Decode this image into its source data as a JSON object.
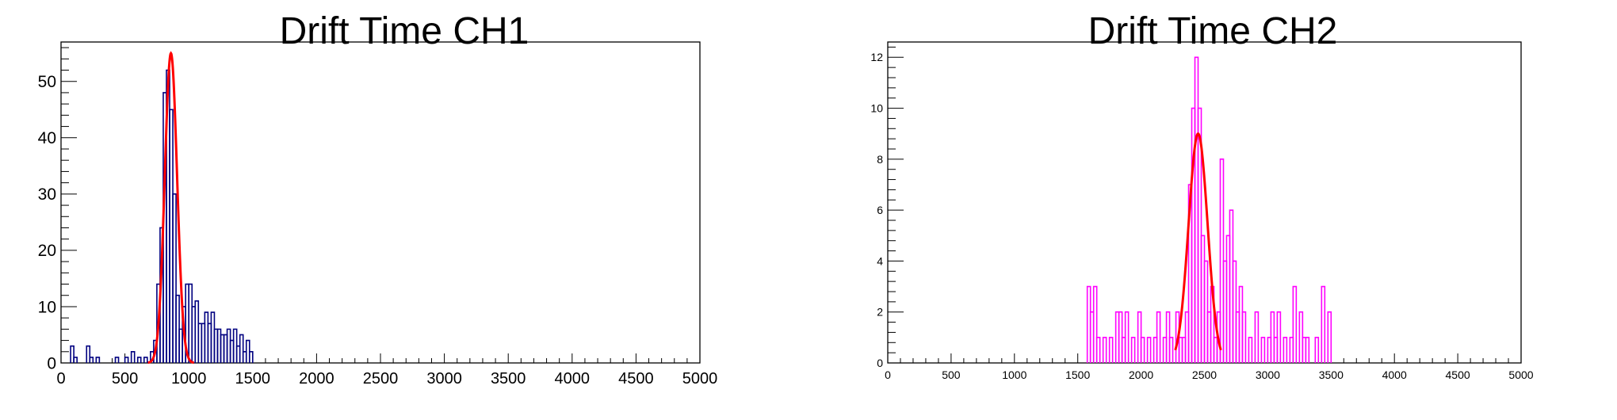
{
  "chart_data": [
    {
      "type": "histogram",
      "title": "Drift Time CH1",
      "xlabel": "",
      "ylabel": "",
      "xlim": [
        0,
        5000
      ],
      "ylim": [
        0,
        57
      ],
      "xticks": [
        0,
        500,
        1000,
        1500,
        2000,
        2500,
        3000,
        3500,
        4000,
        4500,
        5000
      ],
      "yticks": [
        0,
        10,
        20,
        30,
        40,
        50
      ],
      "bin_width": 25,
      "histogram_color": "#000080",
      "fit_color": "#ff0000",
      "bins": [
        {
          "x": 75,
          "y": 3
        },
        {
          "x": 100,
          "y": 1
        },
        {
          "x": 200,
          "y": 3
        },
        {
          "x": 225,
          "y": 1
        },
        {
          "x": 275,
          "y": 1
        },
        {
          "x": 425,
          "y": 1
        },
        {
          "x": 500,
          "y": 1
        },
        {
          "x": 550,
          "y": 2
        },
        {
          "x": 600,
          "y": 1
        },
        {
          "x": 650,
          "y": 1
        },
        {
          "x": 700,
          "y": 2
        },
        {
          "x": 725,
          "y": 4
        },
        {
          "x": 750,
          "y": 14
        },
        {
          "x": 775,
          "y": 24
        },
        {
          "x": 800,
          "y": 48
        },
        {
          "x": 825,
          "y": 52
        },
        {
          "x": 850,
          "y": 45
        },
        {
          "x": 875,
          "y": 30
        },
        {
          "x": 900,
          "y": 12
        },
        {
          "x": 925,
          "y": 6
        },
        {
          "x": 950,
          "y": 10
        },
        {
          "x": 975,
          "y": 14
        },
        {
          "x": 1000,
          "y": 14
        },
        {
          "x": 1025,
          "y": 10
        },
        {
          "x": 1050,
          "y": 11
        },
        {
          "x": 1075,
          "y": 7
        },
        {
          "x": 1100,
          "y": 7
        },
        {
          "x": 1125,
          "y": 9
        },
        {
          "x": 1150,
          "y": 7
        },
        {
          "x": 1175,
          "y": 9
        },
        {
          "x": 1200,
          "y": 6
        },
        {
          "x": 1225,
          "y": 6
        },
        {
          "x": 1250,
          "y": 5
        },
        {
          "x": 1275,
          "y": 5
        },
        {
          "x": 1300,
          "y": 6
        },
        {
          "x": 1325,
          "y": 4
        },
        {
          "x": 1350,
          "y": 6
        },
        {
          "x": 1375,
          "y": 3
        },
        {
          "x": 1400,
          "y": 5
        },
        {
          "x": 1425,
          "y": 2
        },
        {
          "x": 1450,
          "y": 4
        },
        {
          "x": 1475,
          "y": 2
        }
      ],
      "fit": {
        "type": "gaussian",
        "amplitude": 55,
        "mean": 860,
        "sigma": 48,
        "range": [
          680,
          1040
        ]
      }
    },
    {
      "type": "histogram",
      "title": "Drift Time CH2",
      "xlabel": "",
      "ylabel": "",
      "xlim": [
        0,
        5000
      ],
      "ylim": [
        0,
        12.6
      ],
      "xticks": [
        0,
        500,
        1000,
        1500,
        2000,
        2500,
        3000,
        3500,
        4000,
        4500,
        5000
      ],
      "yticks": [
        0,
        2,
        4,
        6,
        8,
        10,
        12
      ],
      "bin_width": 25,
      "histogram_color": "#ff00ff",
      "fit_color": "#ff0000",
      "bins": [
        {
          "x": 1575,
          "y": 3
        },
        {
          "x": 1600,
          "y": 2
        },
        {
          "x": 1625,
          "y": 3
        },
        {
          "x": 1650,
          "y": 1
        },
        {
          "x": 1700,
          "y": 1
        },
        {
          "x": 1750,
          "y": 1
        },
        {
          "x": 1800,
          "y": 2
        },
        {
          "x": 1825,
          "y": 2
        },
        {
          "x": 1850,
          "y": 1
        },
        {
          "x": 1875,
          "y": 2
        },
        {
          "x": 1925,
          "y": 1
        },
        {
          "x": 1975,
          "y": 2
        },
        {
          "x": 2000,
          "y": 1
        },
        {
          "x": 2050,
          "y": 1
        },
        {
          "x": 2100,
          "y": 1
        },
        {
          "x": 2125,
          "y": 2
        },
        {
          "x": 2175,
          "y": 1
        },
        {
          "x": 2200,
          "y": 2
        },
        {
          "x": 2225,
          "y": 1
        },
        {
          "x": 2275,
          "y": 2
        },
        {
          "x": 2300,
          "y": 1
        },
        {
          "x": 2325,
          "y": 1
        },
        {
          "x": 2350,
          "y": 2
        },
        {
          "x": 2375,
          "y": 7
        },
        {
          "x": 2400,
          "y": 10
        },
        {
          "x": 2425,
          "y": 12
        },
        {
          "x": 2450,
          "y": 10
        },
        {
          "x": 2475,
          "y": 5
        },
        {
          "x": 2500,
          "y": 4
        },
        {
          "x": 2525,
          "y": 2
        },
        {
          "x": 2550,
          "y": 3
        },
        {
          "x": 2575,
          "y": 1
        },
        {
          "x": 2600,
          "y": 2
        },
        {
          "x": 2625,
          "y": 8
        },
        {
          "x": 2650,
          "y": 4
        },
        {
          "x": 2675,
          "y": 5
        },
        {
          "x": 2700,
          "y": 6
        },
        {
          "x": 2725,
          "y": 4
        },
        {
          "x": 2750,
          "y": 2
        },
        {
          "x": 2775,
          "y": 3
        },
        {
          "x": 2800,
          "y": 2
        },
        {
          "x": 2850,
          "y": 1
        },
        {
          "x": 2900,
          "y": 2
        },
        {
          "x": 2950,
          "y": 1
        },
        {
          "x": 3000,
          "y": 1
        },
        {
          "x": 3025,
          "y": 2
        },
        {
          "x": 3050,
          "y": 1
        },
        {
          "x": 3075,
          "y": 2
        },
        {
          "x": 3125,
          "y": 1
        },
        {
          "x": 3175,
          "y": 1
        },
        {
          "x": 3200,
          "y": 3
        },
        {
          "x": 3250,
          "y": 2
        },
        {
          "x": 3275,
          "y": 1
        },
        {
          "x": 3300,
          "y": 1
        },
        {
          "x": 3375,
          "y": 1
        },
        {
          "x": 3425,
          "y": 3
        },
        {
          "x": 3475,
          "y": 2
        }
      ],
      "fit": {
        "type": "gaussian",
        "amplitude": 9,
        "mean": 2450,
        "sigma": 75,
        "range": [
          2270,
          2630
        ]
      }
    }
  ]
}
